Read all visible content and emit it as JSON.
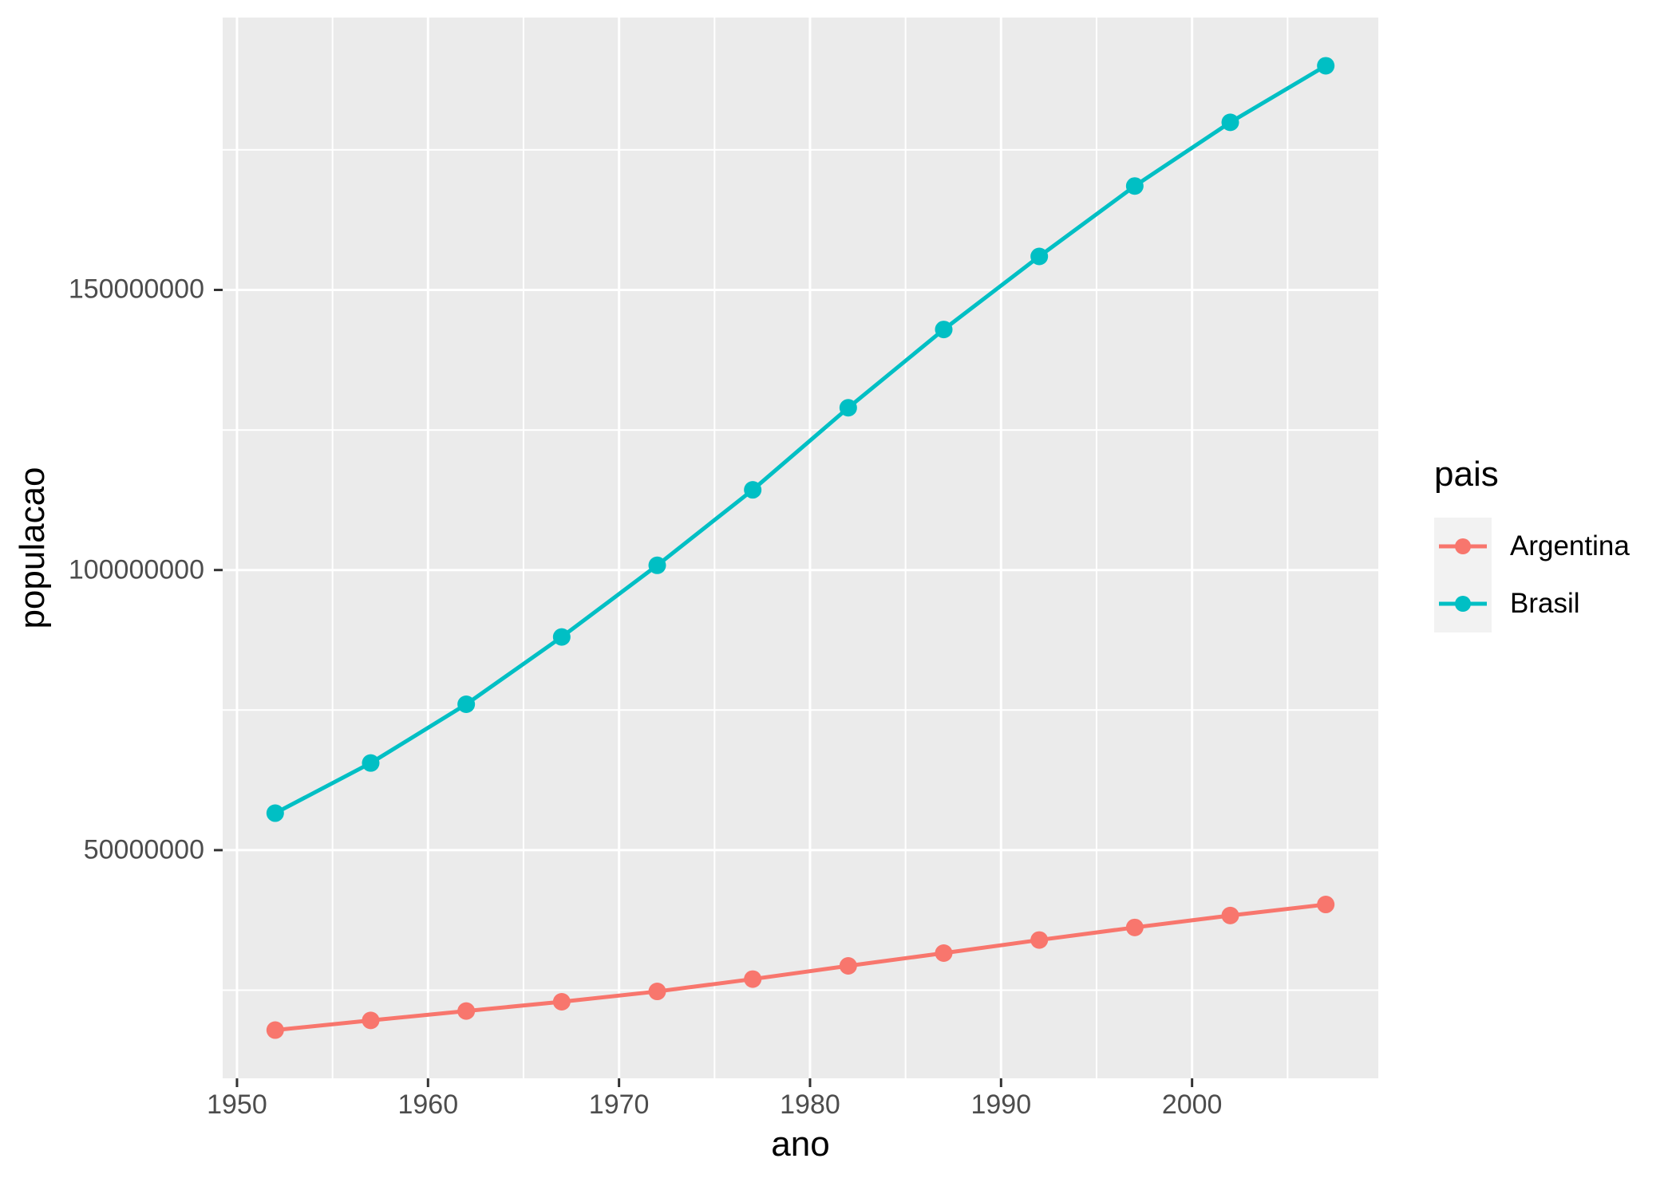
{
  "chart_data": {
    "type": "line",
    "title": "",
    "xlabel": "ano",
    "ylabel": "populacao",
    "legend_title": "pais",
    "legend_position": "right",
    "grid": "major+minor",
    "xlim": [
      1949.25,
      2009.75
    ],
    "ylim": [
      9270271,
      198617332
    ],
    "x_ticks": [
      1950,
      1960,
      1970,
      1980,
      1990,
      2000
    ],
    "y_ticks": [
      50000000,
      100000000,
      150000000
    ],
    "x": [
      1952,
      1957,
      1962,
      1967,
      1972,
      1977,
      1982,
      1987,
      1992,
      1997,
      2002,
      2007
    ],
    "series": [
      {
        "name": "Argentina",
        "color": "#F8766D",
        "values": [
          17876956,
          19610538,
          21283783,
          22934225,
          24779799,
          26983828,
          29341374,
          31620918,
          33958947,
          36203463,
          38331121,
          40301927
        ]
      },
      {
        "name": "Brasil",
        "color": "#00BFC4",
        "values": [
          56602560,
          65551171,
          76039390,
          88049823,
          100840058,
          114313951,
          128962939,
          142938076,
          155975974,
          168546719,
          179914212,
          190010647
        ]
      }
    ]
  },
  "axes": {
    "x_title": "ano",
    "y_title": "populacao",
    "x_tick_labels": [
      "1950",
      "1960",
      "1970",
      "1980",
      "1990",
      "2000"
    ],
    "y_tick_labels": [
      "50000000",
      "100000000",
      "150000000"
    ]
  },
  "legend": {
    "title": "pais",
    "items": [
      {
        "label": "Argentina",
        "color": "#F8766D"
      },
      {
        "label": "Brasil",
        "color": "#00BFC4"
      }
    ]
  },
  "colors": {
    "figure_background": "#FFFFFF",
    "panel_background": "#EBEBEB",
    "gridline": "#FFFFFF",
    "tick_mark": "#333333",
    "tick_label": "#4D4D4D",
    "axis_title": "#000000",
    "legend_key_background": "#F2F2F2"
  }
}
